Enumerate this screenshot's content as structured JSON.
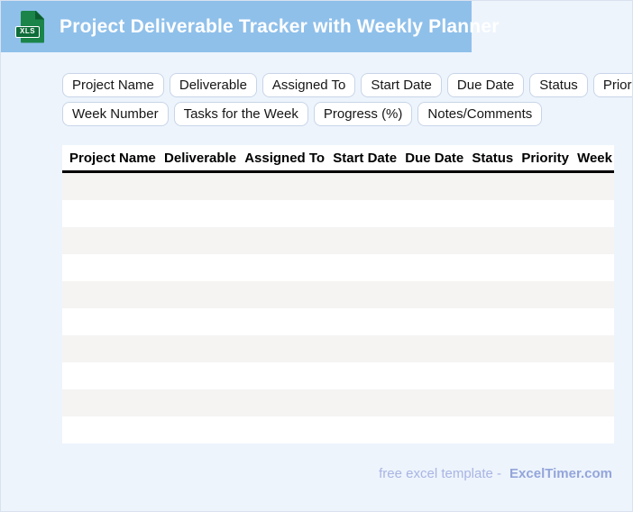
{
  "header": {
    "title": "Project Deliverable Tracker with Weekly Planner",
    "icon_label": "XLS"
  },
  "chips": {
    "row1": [
      "Project Name",
      "Deliverable",
      "Assigned To",
      "Start Date",
      "Due Date",
      "Status",
      "Priority"
    ],
    "row2": [
      "Week Number",
      "Tasks for the Week",
      "Progress (%)",
      "Notes/Comments"
    ]
  },
  "table": {
    "columns": [
      "Project Name",
      "Deliverable",
      "Assigned To",
      "Start Date",
      "Due Date",
      "Status",
      "Priority",
      "Week"
    ],
    "row_count": 10,
    "rows": []
  },
  "footer": {
    "text": "free excel template -",
    "brand": "ExcelTimer.com"
  },
  "colors": {
    "banner": "#8fc0ea",
    "page_background": "#edf4fc",
    "row_alternate": "#f5f4f3",
    "chip_border": "#c8d5e8",
    "header_border": "#000000",
    "footer_text": "#a9b5e3",
    "footer_brand": "#94a5da",
    "icon_green": "#1b8549",
    "icon_dark_green": "#0f6d3a"
  }
}
